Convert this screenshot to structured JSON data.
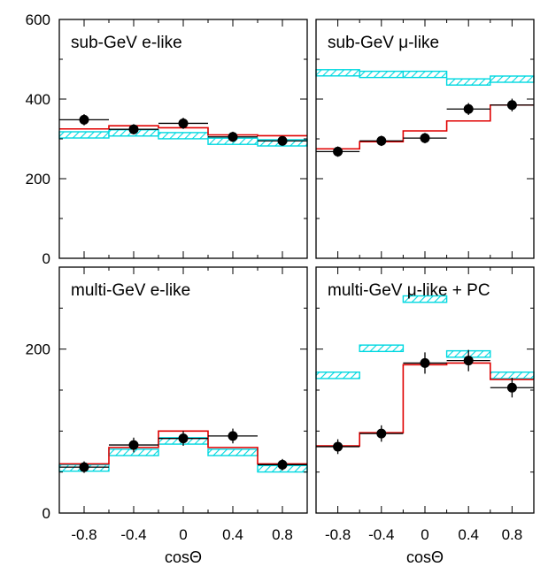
{
  "colors": {
    "mc": "#00d8e0",
    "fit": "#e00000",
    "data": "#000000",
    "frame": "#000000"
  },
  "x_ticks": [
    -0.8,
    -0.4,
    0,
    0.4,
    0.8
  ],
  "x_tick_labels": [
    "-0.8",
    "-0.4",
    "0",
    "0.4",
    "0.8"
  ],
  "xlabel": "cosΘ",
  "chart_data": [
    {
      "type": "line",
      "title": "sub-GeV e-like",
      "xlim": [
        -1.0,
        1.0
      ],
      "ylim": [
        0,
        600
      ],
      "y_ticks": [
        0,
        200,
        400,
        600
      ],
      "y_tick_labels": [
        "0",
        "200",
        "400",
        "600"
      ],
      "bins": [
        [
          -1.0,
          -0.6
        ],
        [
          -0.6,
          -0.2
        ],
        [
          -0.2,
          0.2
        ],
        [
          0.2,
          0.6
        ],
        [
          0.6,
          1.0
        ]
      ],
      "mc_no_osc": [
        310,
        315,
        308,
        294,
        290
      ],
      "fit": [
        325,
        333,
        328,
        310,
        308
      ],
      "data_points": [
        {
          "x": -0.8,
          "y": 348,
          "err": 14
        },
        {
          "x": -0.4,
          "y": 324,
          "err": 13
        },
        {
          "x": 0.0,
          "y": 339,
          "err": 14
        },
        {
          "x": 0.4,
          "y": 305,
          "err": 13
        },
        {
          "x": 0.8,
          "y": 295,
          "err": 12
        }
      ]
    },
    {
      "type": "line",
      "title": "sub-GeV μ-like",
      "xlim": [
        -1.0,
        1.0
      ],
      "ylim": [
        0,
        600
      ],
      "y_ticks": [
        0,
        200,
        400,
        600
      ],
      "y_tick_labels": [
        "",
        "",
        "",
        ""
      ],
      "bins": [
        [
          -1.0,
          -0.6
        ],
        [
          -0.6,
          -0.2
        ],
        [
          -0.2,
          0.2
        ],
        [
          0.2,
          0.6
        ],
        [
          0.6,
          1.0
        ]
      ],
      "mc_no_osc": [
        466,
        462,
        462,
        443,
        450
      ],
      "fit": [
        275,
        293,
        320,
        345,
        385
      ],
      "data_points": [
        {
          "x": -0.8,
          "y": 268,
          "err": 13
        },
        {
          "x": -0.4,
          "y": 295,
          "err": 13
        },
        {
          "x": 0.0,
          "y": 302,
          "err": 13
        },
        {
          "x": 0.4,
          "y": 375,
          "err": 15
        },
        {
          "x": 0.8,
          "y": 385,
          "err": 16
        }
      ]
    },
    {
      "type": "line",
      "title": "multi-GeV e-like",
      "xlim": [
        -1.0,
        1.0
      ],
      "ylim": [
        0,
        300
      ],
      "y_ticks": [
        0,
        200
      ],
      "y_tick_labels": [
        "0",
        "200"
      ],
      "bins": [
        [
          -1.0,
          -0.6
        ],
        [
          -0.6,
          -0.2
        ],
        [
          -0.2,
          0.2
        ],
        [
          0.2,
          0.6
        ],
        [
          0.6,
          1.0
        ]
      ],
      "mc_no_osc": [
        55,
        74,
        88,
        74,
        54
      ],
      "fit": [
        60,
        80,
        100,
        80,
        60
      ],
      "data_points": [
        {
          "x": -0.8,
          "y": 56,
          "err": 7
        },
        {
          "x": -0.4,
          "y": 83,
          "err": 9
        },
        {
          "x": 0.0,
          "y": 91,
          "err": 9
        },
        {
          "x": 0.4,
          "y": 94,
          "err": 9
        },
        {
          "x": 0.8,
          "y": 59,
          "err": 7
        }
      ]
    },
    {
      "type": "line",
      "title": "multi-GeV μ-like + PC",
      "xlim": [
        -1.0,
        1.0
      ],
      "ylim": [
        0,
        300
      ],
      "y_ticks": [
        0,
        200
      ],
      "y_tick_labels": [
        "",
        ""
      ],
      "bins": [
        [
          -1.0,
          -0.6
        ],
        [
          -0.6,
          -0.2
        ],
        [
          -0.2,
          0.2
        ],
        [
          0.2,
          0.6
        ],
        [
          0.6,
          1.0
        ]
      ],
      "mc_no_osc": [
        168,
        201,
        261,
        194,
        168
      ],
      "fit": [
        82,
        98,
        181,
        183,
        163
      ],
      "data_points": [
        {
          "x": -0.8,
          "y": 81,
          "err": 9
        },
        {
          "x": -0.4,
          "y": 97,
          "err": 10
        },
        {
          "x": 0.0,
          "y": 183,
          "err": 13
        },
        {
          "x": 0.4,
          "y": 186,
          "err": 13
        },
        {
          "x": 0.8,
          "y": 153,
          "err": 12
        }
      ]
    }
  ]
}
